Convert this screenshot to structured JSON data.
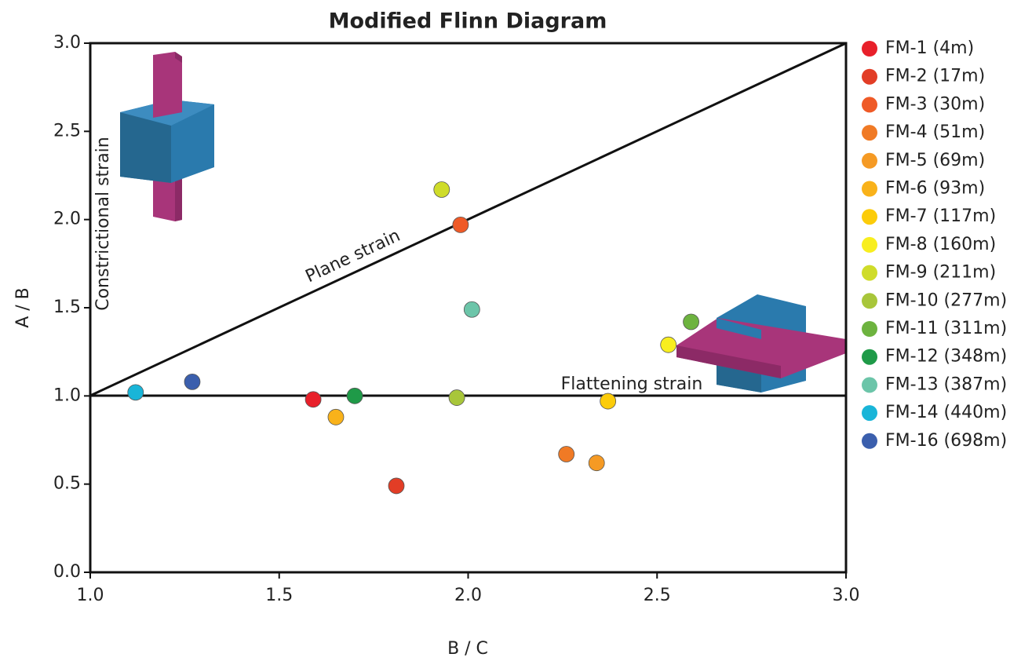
{
  "chart_data": {
    "type": "scatter",
    "title": "Modified Flinn Diagram",
    "x_label": "B / C",
    "y_label": "A / B",
    "annotations": [
      "Plane strain",
      "Flattening strain",
      "Constrictional strain"
    ],
    "xlim": [
      1.0,
      3.0
    ],
    "ylim": [
      0.0,
      3.0
    ],
    "xticks": [
      {
        "value": 1.0,
        "label": "1.0"
      },
      {
        "value": 1.5,
        "label": "1.5"
      },
      {
        "value": 2.0,
        "label": "2.0"
      },
      {
        "value": 2.5,
        "label": "2.5"
      },
      {
        "value": 3.0,
        "label": "3.0"
      }
    ],
    "yticks": [
      {
        "value": 0.0,
        "label": "0.0"
      },
      {
        "value": 0.5,
        "label": "0.5"
      },
      {
        "value": 1.0,
        "label": "1.0"
      },
      {
        "value": 1.5,
        "label": "1.5"
      },
      {
        "value": 2.0,
        "label": "2.0"
      },
      {
        "value": 2.5,
        "label": "2.5"
      },
      {
        "value": 3.0,
        "label": "3.0"
      }
    ],
    "grid": false,
    "legend": "right",
    "series": [
      {
        "name": "FM-1 (4m)",
        "color": "#e8202a",
        "x": [
          1.59
        ],
        "values": [
          0.98
        ]
      },
      {
        "name": "FM-2 (17m)",
        "color": "#e23d26",
        "x": [
          1.81
        ],
        "values": [
          0.49
        ]
      },
      {
        "name": "FM-3 (30m)",
        "color": "#ef5a27",
        "x": [
          1.98
        ],
        "values": [
          1.97
        ]
      },
      {
        "name": "FM-4 (51m)",
        "color": "#f07a25",
        "x": [
          2.26
        ],
        "values": [
          0.67
        ]
      },
      {
        "name": "FM-5 (69m)",
        "color": "#f59a24",
        "x": [
          2.34
        ],
        "values": [
          0.62
        ]
      },
      {
        "name": "FM-6 (93m)",
        "color": "#f9b21a",
        "x": [
          1.65
        ],
        "values": [
          0.88
        ]
      },
      {
        "name": "FM-7 (117m)",
        "color": "#fccc0a",
        "x": [
          2.37
        ],
        "values": [
          0.97
        ]
      },
      {
        "name": "FM-8 (160m)",
        "color": "#f8ee1f",
        "x": [
          2.53
        ],
        "values": [
          1.29
        ]
      },
      {
        "name": "FM-9 (211m)",
        "color": "#cfdc2a",
        "x": [
          1.93
        ],
        "values": [
          2.17
        ]
      },
      {
        "name": "FM-10 (277m)",
        "color": "#a8c63a",
        "x": [
          1.97
        ],
        "values": [
          0.99
        ]
      },
      {
        "name": "FM-11 (311m)",
        "color": "#6db33f",
        "x": [
          2.59
        ],
        "values": [
          1.42
        ]
      },
      {
        "name": "FM-12 (348m)",
        "color": "#1f9a48",
        "x": [
          1.7
        ],
        "values": [
          1.0
        ]
      },
      {
        "name": "FM-13 (387m)",
        "color": "#6cc5a9",
        "x": [
          2.01
        ],
        "values": [
          1.49
        ]
      },
      {
        "name": "FM-14 (440m)",
        "color": "#19b5d8",
        "x": [
          1.12
        ],
        "values": [
          1.02
        ]
      },
      {
        "name": "FM-16 (698m)",
        "color": "#3b5fad",
        "x": [
          1.27
        ],
        "values": [
          1.08
        ]
      }
    ]
  }
}
